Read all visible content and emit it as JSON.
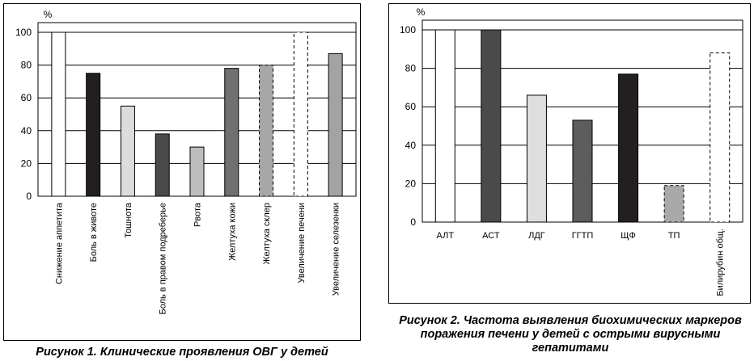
{
  "chart_data": [
    {
      "type": "bar",
      "title": "Рисунок 1. Клинические проявления ОВГ у детей",
      "ylabel": "%",
      "ylim": [
        0,
        100
      ],
      "yticks": [
        0,
        20,
        40,
        60,
        80,
        100
      ],
      "grid": true,
      "categories": [
        "Снижение аппетита",
        "Боль в животе",
        "Тошнота",
        "Боль в правом подреберье",
        "Рвота",
        "Желтуха кожи",
        "Желтуха склер",
        "Увеличение печени",
        "Увеличение селезенки"
      ],
      "values": [
        100,
        75,
        55,
        38,
        30,
        78,
        80,
        100,
        87
      ],
      "colors": [
        "#ffffff",
        "#231f20",
        "#dcdcdc",
        "#4a4a4a",
        "#bdbdbd",
        "#707070",
        "#a7a7a7",
        "#ffffff",
        "#a3a3a3"
      ],
      "dashed": [
        false,
        false,
        false,
        false,
        false,
        false,
        true,
        true,
        false
      ]
    },
    {
      "type": "bar",
      "title": "Рисунок 2. Частота выявления биохимических маркеров поражения печени у детей с острыми вирусными гепатитами",
      "ylabel": "%",
      "ylim": [
        0,
        100
      ],
      "yticks": [
        0,
        20,
        40,
        60,
        80,
        100
      ],
      "grid": true,
      "categories": [
        "АЛТ",
        "АСТ",
        "ЛДГ",
        "ГГТП",
        "ЩФ",
        "ТП",
        "Билирубин общ."
      ],
      "values": [
        100,
        100,
        66,
        53,
        77,
        19,
        88
      ],
      "colors": [
        "#ffffff",
        "#4a4a4a",
        "#dedede",
        "#5d5d5d",
        "#231f20",
        "#a9a9a9",
        "#ffffff"
      ],
      "dashed": [
        false,
        false,
        false,
        false,
        false,
        true,
        true
      ],
      "vertical_labels": [
        false,
        false,
        false,
        false,
        false,
        false,
        true
      ]
    }
  ]
}
